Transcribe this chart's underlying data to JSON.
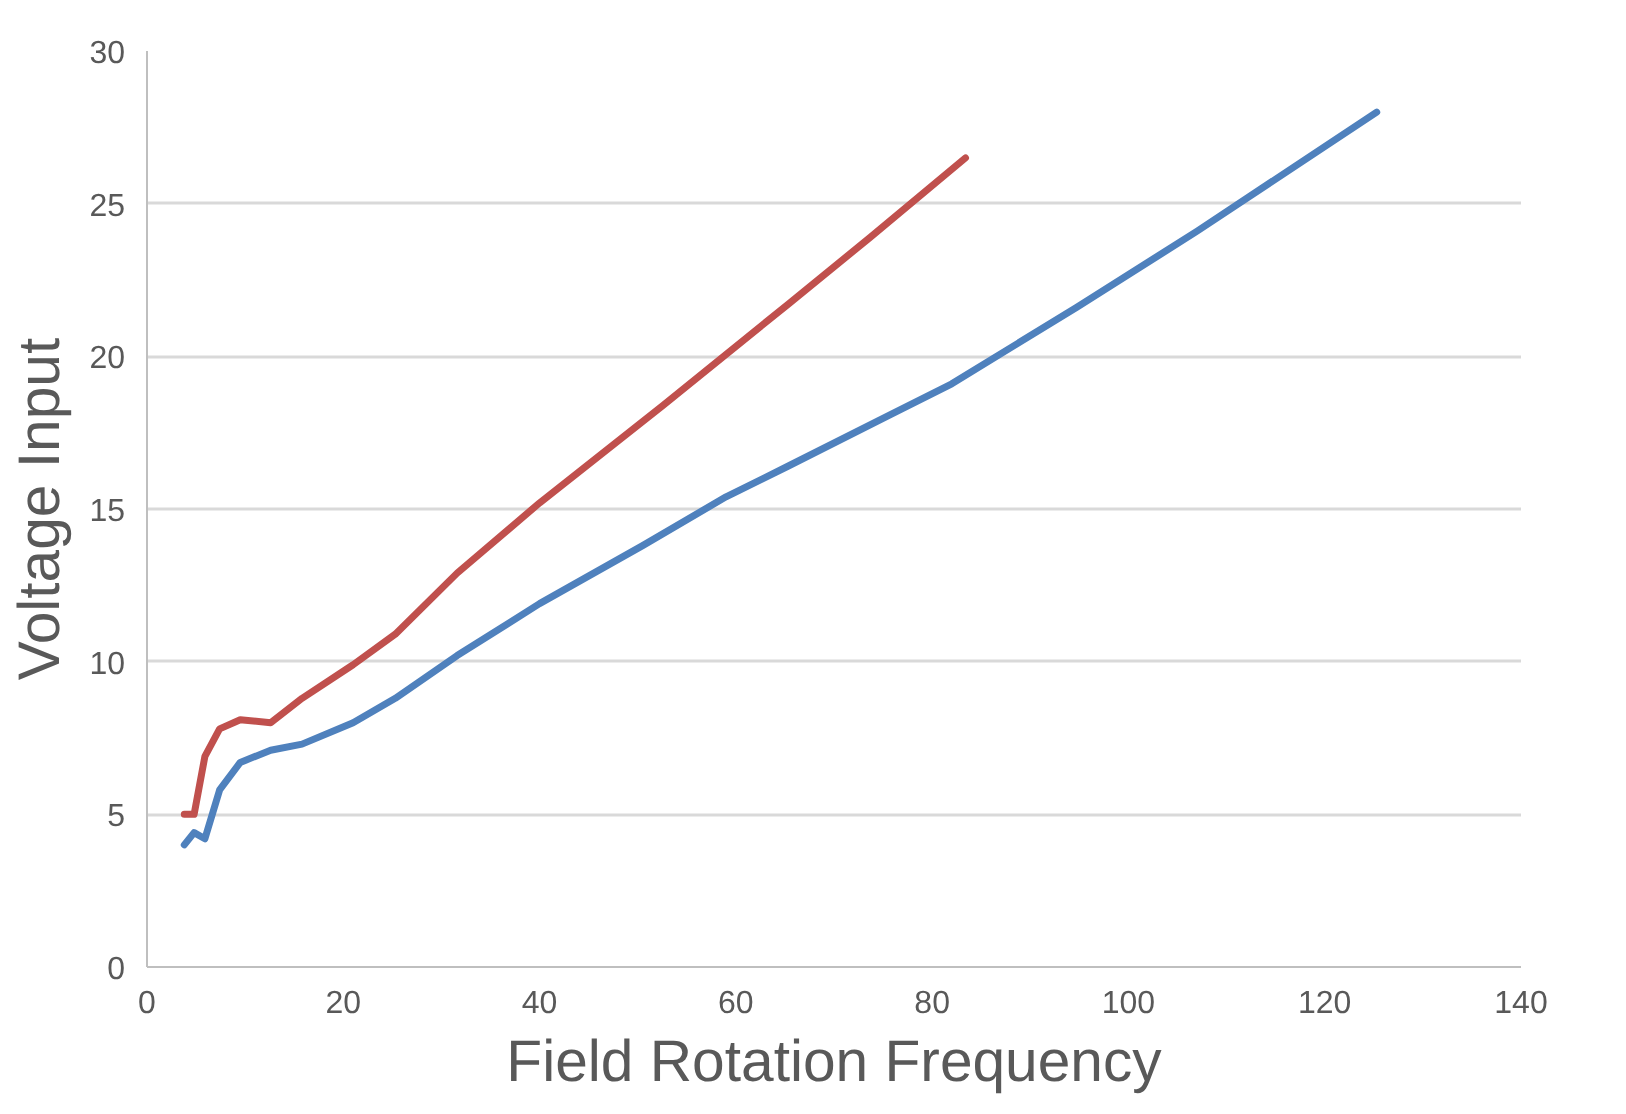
{
  "chart_data": {
    "type": "line",
    "xlabel": "Field Rotation Frequency",
    "ylabel": "Voltage Input",
    "xlim": [
      0,
      140
    ],
    "xticks": [
      0,
      20,
      40,
      60,
      80,
      100,
      120,
      140
    ],
    "ylim": [
      0,
      30
    ],
    "yticks": [
      0,
      5,
      10,
      15,
      20,
      25,
      30
    ],
    "grid": "y",
    "series": [
      {
        "color": "#4f81bd",
        "x": [
          3.8,
          4.8,
          5.9,
          7.4,
          9.5,
          12.6,
          15.8,
          21,
          25.3,
          31.6,
          40,
          50.5,
          59,
          65.3,
          75.8,
          82,
          94.7,
          107,
          125.3
        ],
        "values": [
          4.0,
          4.4,
          4.2,
          5.8,
          6.7,
          7.1,
          7.3,
          8.0,
          8.8,
          10.2,
          11.9,
          13.8,
          15.4,
          16.4,
          18.1,
          19.1,
          21.6,
          24.1,
          28.0
        ]
      },
      {
        "color": "#c0504d",
        "x": [
          3.8,
          4.8,
          5.9,
          7.4,
          9.5,
          12.6,
          15.8,
          21,
          25.3,
          31.6,
          40,
          52.6,
          65.3,
          73.7,
          83.4
        ],
        "values": [
          5.0,
          5.0,
          6.9,
          7.8,
          8.1,
          8.0,
          8.8,
          9.9,
          10.9,
          12.9,
          15.2,
          18.4,
          21.7,
          23.9,
          26.5
        ]
      }
    ]
  }
}
